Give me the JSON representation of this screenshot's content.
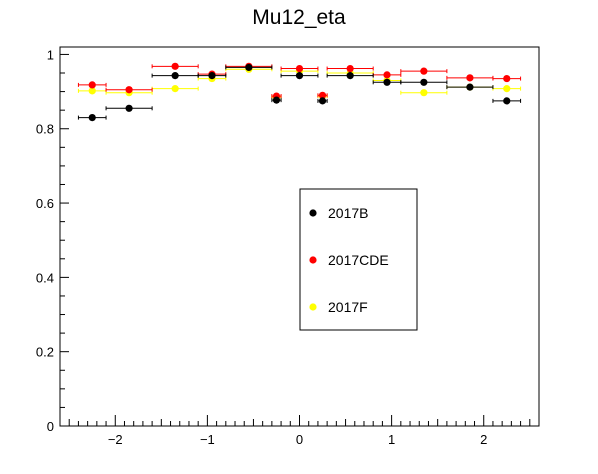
{
  "chart_data": {
    "type": "scatter",
    "title": "Mu12_eta",
    "xlabel": "",
    "ylabel": "",
    "xlim": [
      -2.6,
      2.6
    ],
    "ylim": [
      0,
      1.02
    ],
    "x_ticks": [
      -2,
      -1,
      0,
      1,
      2
    ],
    "y_ticks": [
      0,
      0.2,
      0.4,
      0.6,
      0.8,
      1
    ],
    "x_tick_labels": [
      "−2",
      "−1",
      "0",
      "1",
      "2"
    ],
    "y_tick_labels": [
      "0",
      "0.2",
      "0.4",
      "0.6",
      "0.8",
      "1"
    ],
    "legend_placement": "center-right",
    "grid": false,
    "bins": [
      {
        "x": -2.25,
        "xerr": 0.15
      },
      {
        "x": -1.85,
        "xerr": 0.25
      },
      {
        "x": -1.35,
        "xerr": 0.25
      },
      {
        "x": -0.95,
        "xerr": 0.15
      },
      {
        "x": -0.55,
        "xerr": 0.25
      },
      {
        "x": -0.25,
        "xerr": 0.05
      },
      {
        "x": 0.0,
        "xerr": 0.2
      },
      {
        "x": 0.25,
        "xerr": 0.05
      },
      {
        "x": 0.55,
        "xerr": 0.25
      },
      {
        "x": 0.95,
        "xerr": 0.15
      },
      {
        "x": 1.35,
        "xerr": 0.25
      },
      {
        "x": 1.85,
        "xerr": 0.25
      },
      {
        "x": 2.25,
        "xerr": 0.15
      }
    ],
    "series": [
      {
        "name": "2017B",
        "color": "#000000",
        "values": [
          0.83,
          0.855,
          0.943,
          0.943,
          0.965,
          0.877,
          0.943,
          0.875,
          0.943,
          0.925,
          0.925,
          0.912,
          0.875
        ]
      },
      {
        "name": "2017CDE",
        "color": "#ff0000",
        "values": [
          0.918,
          0.905,
          0.968,
          0.947,
          0.968,
          0.888,
          0.962,
          0.89,
          0.962,
          0.945,
          0.955,
          0.937,
          0.935
        ]
      },
      {
        "name": "2017F",
        "color": "#ffff00",
        "values": [
          0.902,
          0.897,
          0.908,
          0.935,
          0.96,
          0.885,
          0.955,
          0.888,
          0.95,
          0.93,
          0.897,
          0.912,
          0.908
        ]
      }
    ]
  }
}
